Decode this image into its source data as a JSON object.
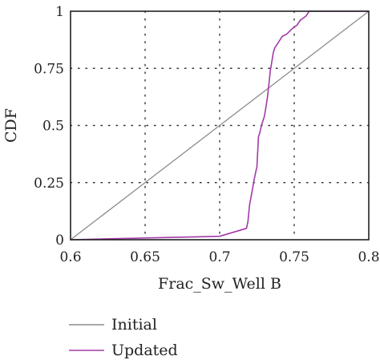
{
  "chart_data": {
    "type": "line",
    "title": "",
    "xlabel": "Frac_Sw_Well B",
    "ylabel": "CDF",
    "xlim": [
      0.6,
      0.8
    ],
    "ylim": [
      0,
      1
    ],
    "x_ticks": [
      "0.6",
      "0.65",
      "0.7",
      "0.75",
      "0.8"
    ],
    "y_ticks": [
      "0",
      "0.25",
      "0.5",
      "0.75",
      "1"
    ],
    "grid": "dotted",
    "legend_position": "bottom",
    "series": [
      {
        "name": "Initial",
        "color": "#8c8c8c",
        "x": [
          0.6,
          0.8
        ],
        "y": [
          0,
          1
        ]
      },
      {
        "name": "Updated",
        "color": "#a23aa8",
        "x": [
          0.6,
          0.7,
          0.718,
          0.719,
          0.72,
          0.722,
          0.723,
          0.724,
          0.725,
          0.726,
          0.727,
          0.728,
          0.73,
          0.731,
          0.732,
          0.733,
          0.734,
          0.735,
          0.736,
          0.737,
          0.738,
          0.74,
          0.741,
          0.742,
          0.745,
          0.748,
          0.75,
          0.752,
          0.754,
          0.756,
          0.758,
          0.759,
          0.76,
          0.775,
          0.8
        ],
        "y": [
          0,
          0.015,
          0.05,
          0.08,
          0.15,
          0.22,
          0.26,
          0.29,
          0.32,
          0.45,
          0.47,
          0.5,
          0.54,
          0.58,
          0.62,
          0.68,
          0.74,
          0.78,
          0.82,
          0.84,
          0.85,
          0.87,
          0.88,
          0.89,
          0.9,
          0.92,
          0.93,
          0.94,
          0.96,
          0.97,
          0.98,
          0.99,
          1.0,
          1.0,
          1.0
        ]
      }
    ]
  }
}
